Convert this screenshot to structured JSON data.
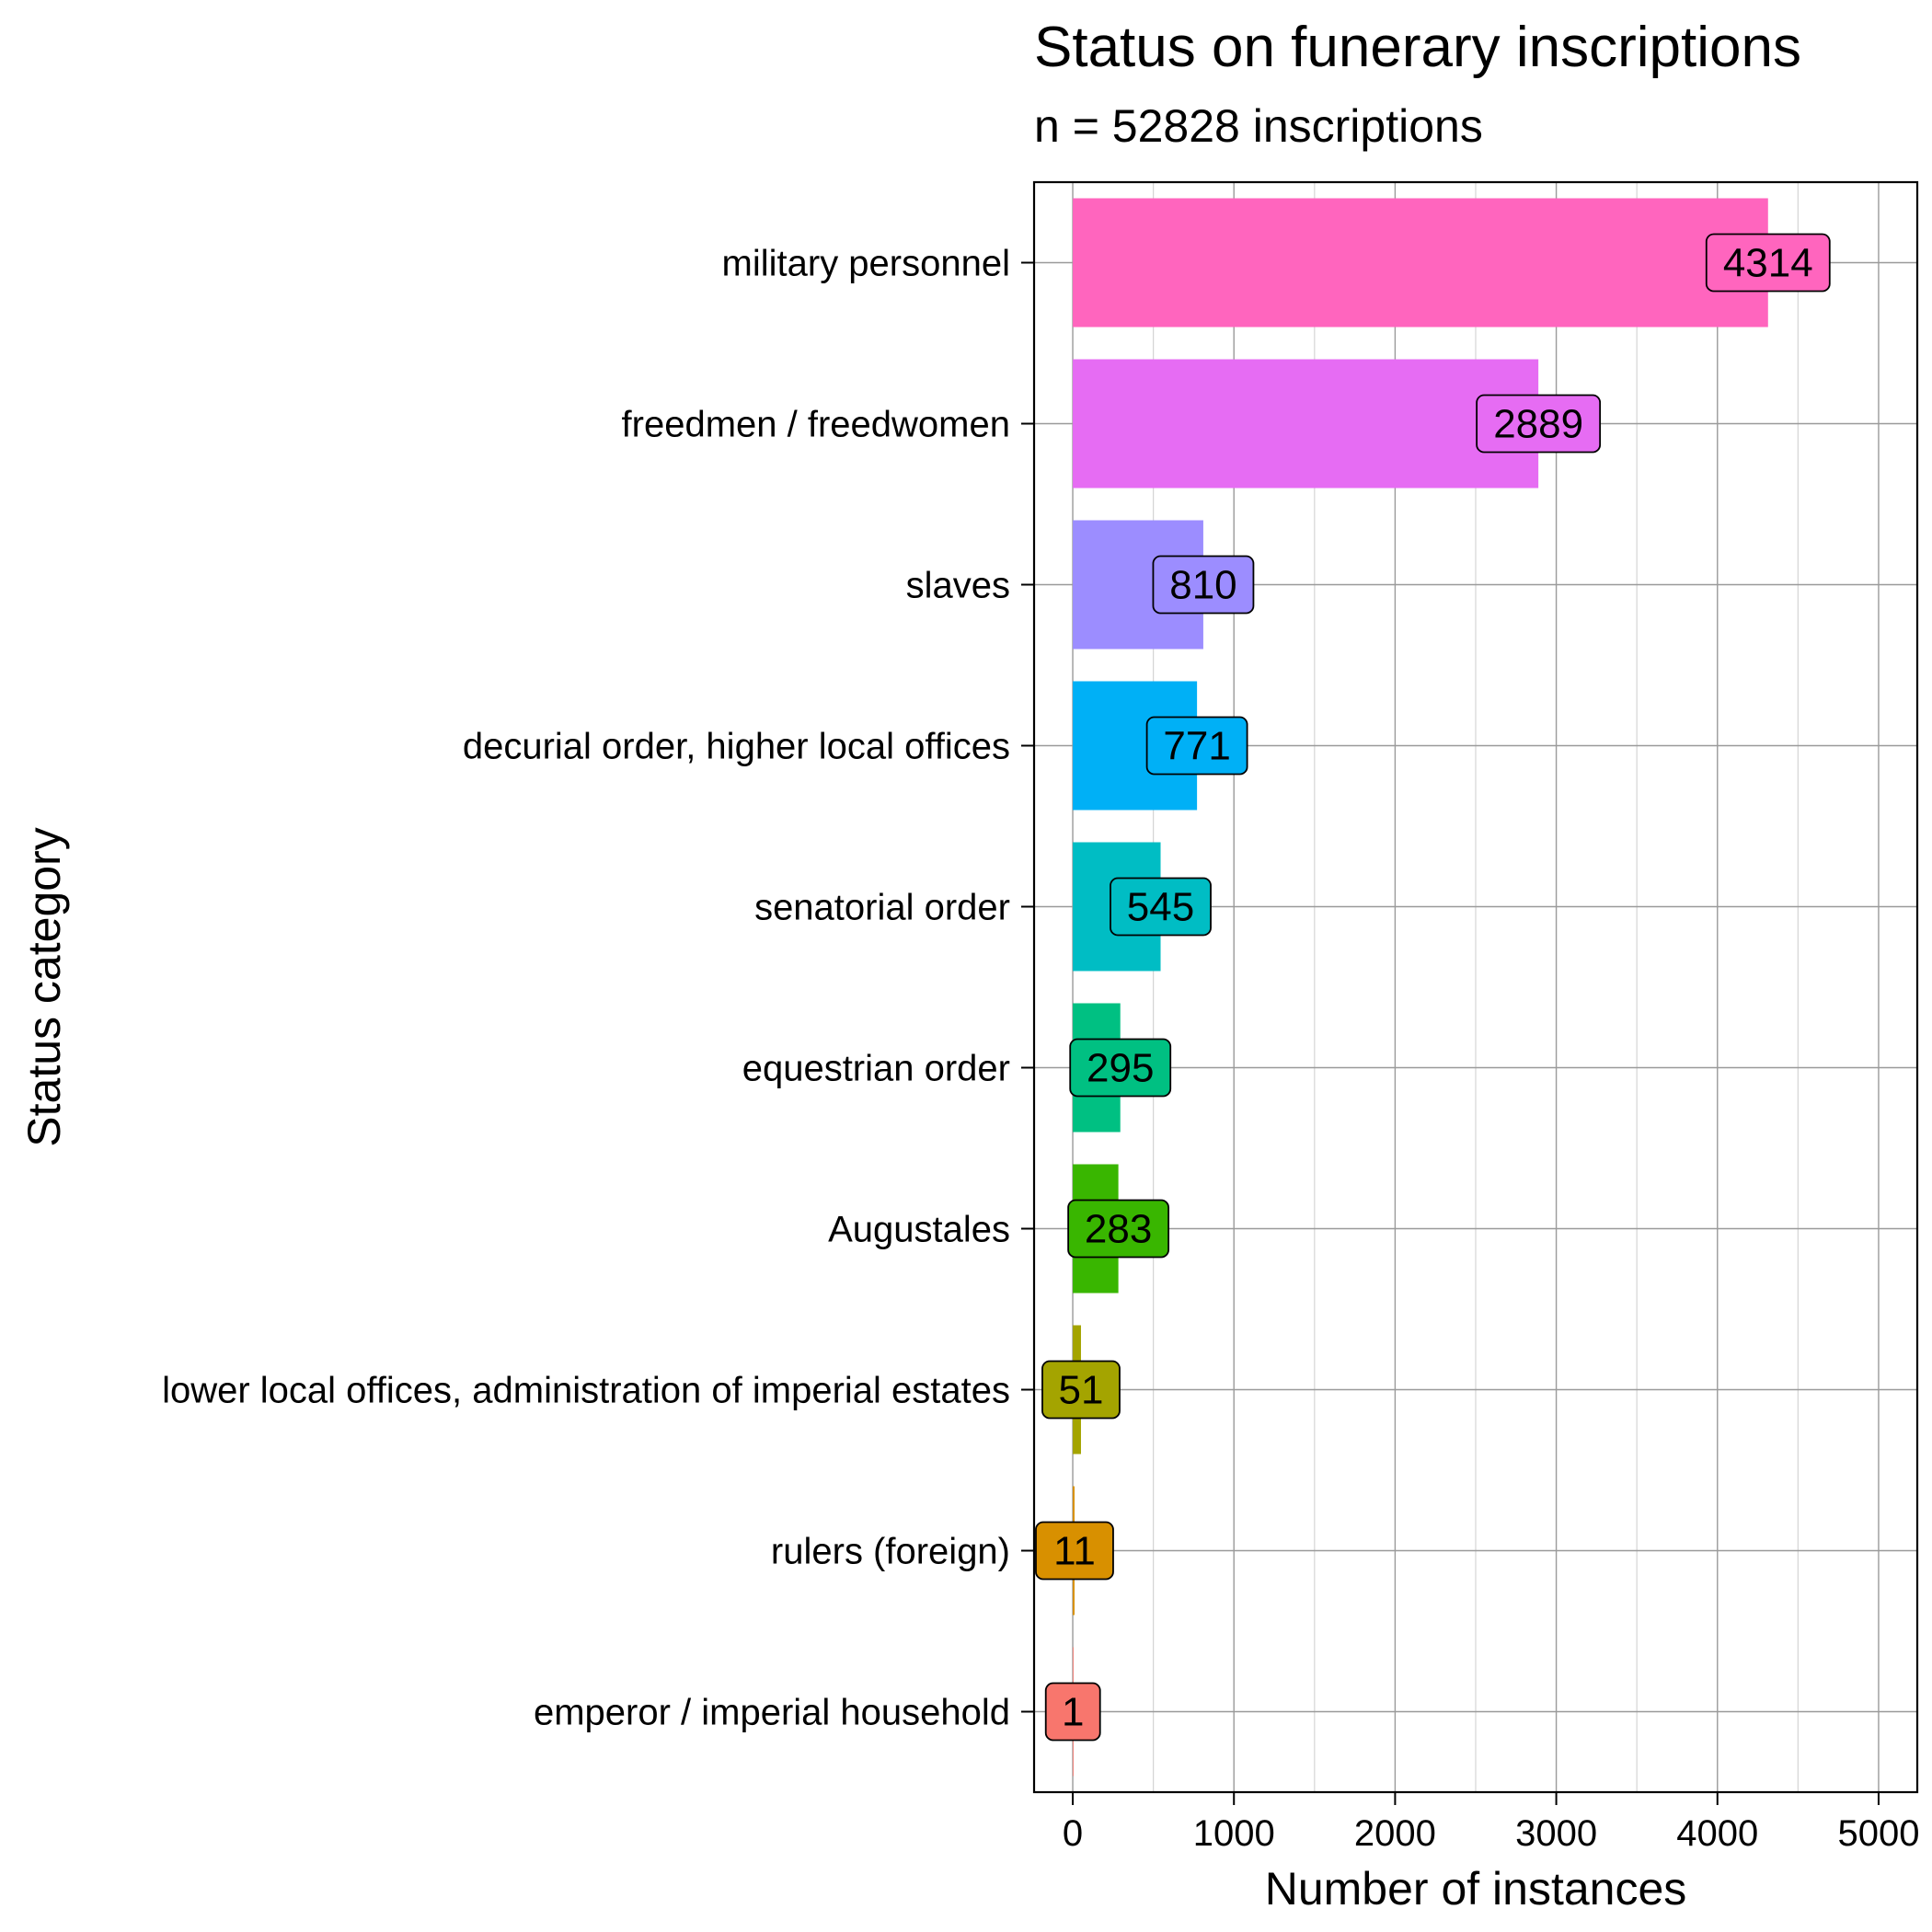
{
  "chart_data": {
    "type": "bar",
    "orientation": "horizontal",
    "title": "Status on funerary inscriptions",
    "subtitle": "n = 52828 inscriptions",
    "xlabel": "Number of instances",
    "ylabel": "Status category",
    "xlim": [
      -240,
      5240
    ],
    "xticks": [
      0,
      1000,
      2000,
      3000,
      4000,
      5000
    ],
    "xtick_labels": [
      "0",
      "1000",
      "2000",
      "3000",
      "4000",
      "5000"
    ],
    "minor_gridlines": [
      500,
      1500,
      2500,
      3500,
      4500
    ],
    "grid": true,
    "legend": "none",
    "categories": [
      "military personnel",
      "freedmen / freedwomen",
      "slaves",
      "decurial order, higher local offices",
      "senatorial order",
      "equestrian order",
      "Augustales",
      "lower local offices, administration of imperial estates",
      "rulers (foreign)",
      "emperor / imperial household"
    ],
    "values": [
      4314,
      2889,
      810,
      771,
      545,
      295,
      283,
      51,
      11,
      1
    ],
    "data_labels": [
      "4314",
      "2889",
      "810",
      "771",
      "545",
      "295",
      "283",
      "51",
      "11",
      "1"
    ],
    "colors": [
      "#FF65BE",
      "#E66CF3",
      "#9C8DFF",
      "#00B0F6",
      "#00BDC4",
      "#00C082",
      "#39B600",
      "#A4A400",
      "#D89000",
      "#F8766D"
    ]
  }
}
